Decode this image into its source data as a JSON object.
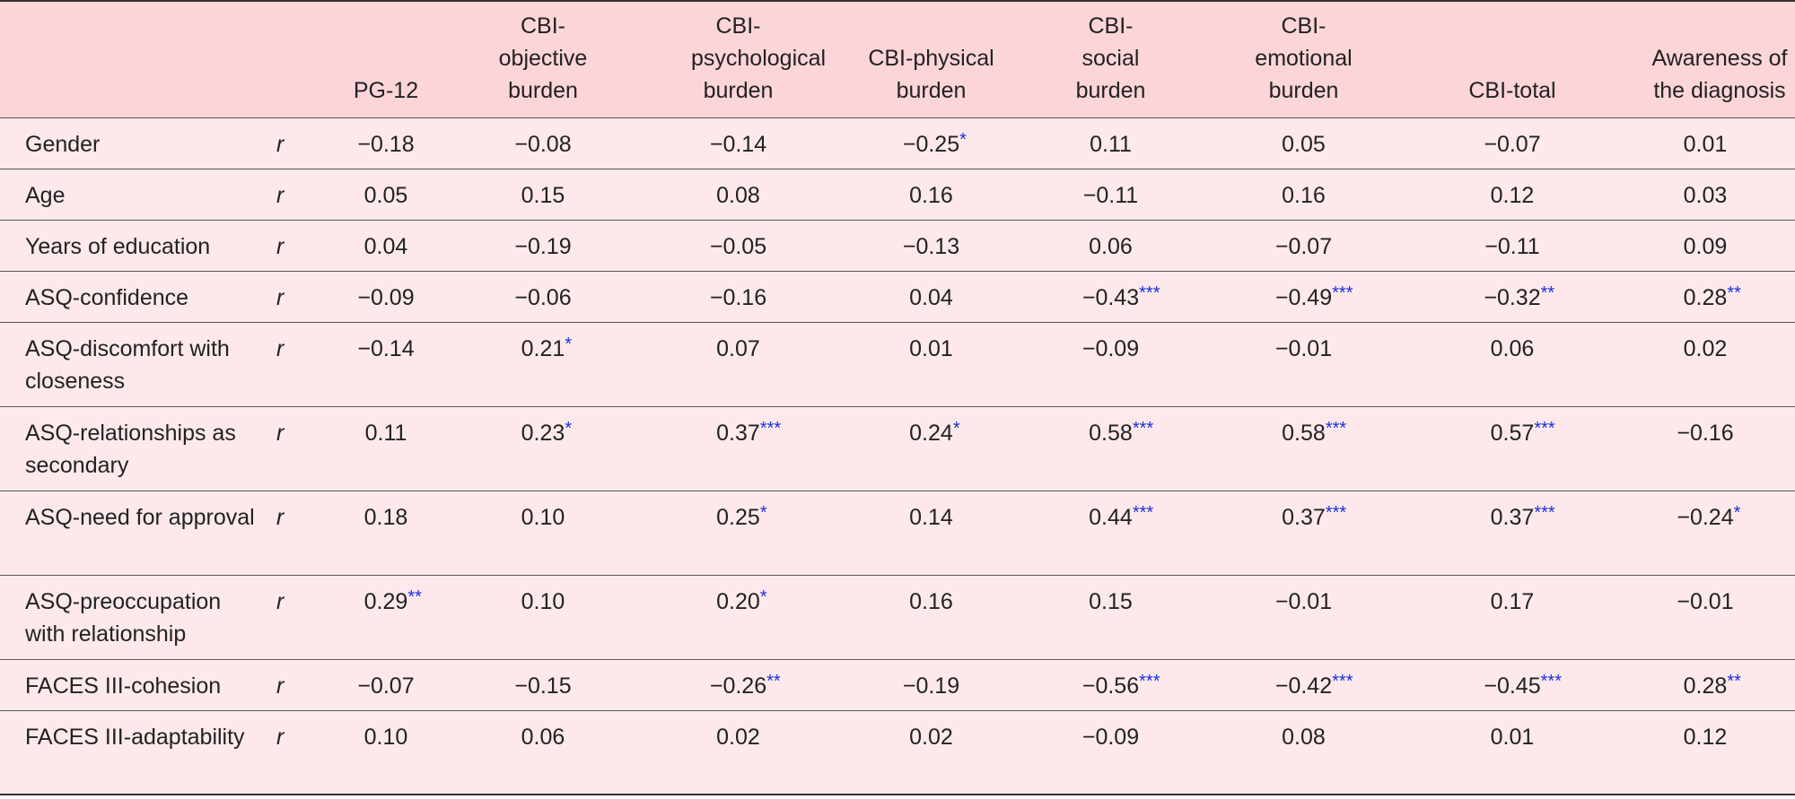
{
  "table": {
    "columns": [
      "",
      "",
      "PG-12",
      "CBI-objective burden",
      "CBI-psychological burden",
      "CBI-physical burden",
      "CBI-social burden",
      "CBI-emotional burden",
      "CBI-total",
      "Awareness of the diagnosis"
    ],
    "rows": [
      {
        "label": "Gender",
        "stat": "r",
        "cells": [
          {
            "v": "−0.18",
            "s": ""
          },
          {
            "v": "−0.08",
            "s": ""
          },
          {
            "v": "−0.14",
            "s": ""
          },
          {
            "v": "−0.25",
            "s": "*"
          },
          {
            "v": "0.11",
            "s": ""
          },
          {
            "v": "0.05",
            "s": ""
          },
          {
            "v": "−0.07",
            "s": ""
          },
          {
            "v": "0.01",
            "s": ""
          }
        ]
      },
      {
        "label": "Age",
        "stat": "r",
        "cells": [
          {
            "v": "0.05",
            "s": ""
          },
          {
            "v": "0.15",
            "s": ""
          },
          {
            "v": "0.08",
            "s": ""
          },
          {
            "v": "0.16",
            "s": ""
          },
          {
            "v": "−0.11",
            "s": ""
          },
          {
            "v": "0.16",
            "s": ""
          },
          {
            "v": "0.12",
            "s": ""
          },
          {
            "v": "0.03",
            "s": ""
          }
        ]
      },
      {
        "label": "Years of education",
        "stat": "r",
        "cells": [
          {
            "v": "0.04",
            "s": ""
          },
          {
            "v": "−0.19",
            "s": ""
          },
          {
            "v": "−0.05",
            "s": ""
          },
          {
            "v": "−0.13",
            "s": ""
          },
          {
            "v": "0.06",
            "s": ""
          },
          {
            "v": "−0.07",
            "s": ""
          },
          {
            "v": "−0.11",
            "s": ""
          },
          {
            "v": "0.09",
            "s": ""
          }
        ]
      },
      {
        "label": "ASQ-confidence",
        "stat": "r",
        "cells": [
          {
            "v": "−0.09",
            "s": ""
          },
          {
            "v": "−0.06",
            "s": ""
          },
          {
            "v": "−0.16",
            "s": ""
          },
          {
            "v": "0.04",
            "s": ""
          },
          {
            "v": "−0.43",
            "s": "***"
          },
          {
            "v": "−0.49",
            "s": "***"
          },
          {
            "v": "−0.32",
            "s": "**"
          },
          {
            "v": "0.28",
            "s": "**"
          }
        ]
      },
      {
        "label": "ASQ-discomfort with closeness",
        "stat": "r",
        "cells": [
          {
            "v": "−0.14",
            "s": ""
          },
          {
            "v": "0.21",
            "s": "*"
          },
          {
            "v": "0.07",
            "s": ""
          },
          {
            "v": "0.01",
            "s": ""
          },
          {
            "v": "−0.09",
            "s": ""
          },
          {
            "v": "−0.01",
            "s": ""
          },
          {
            "v": "0.06",
            "s": ""
          },
          {
            "v": "0.02",
            "s": ""
          }
        ]
      },
      {
        "label": "ASQ-relationships as secondary",
        "stat": "r",
        "cells": [
          {
            "v": "0.11",
            "s": ""
          },
          {
            "v": "0.23",
            "s": "*"
          },
          {
            "v": "0.37",
            "s": "***"
          },
          {
            "v": "0.24",
            "s": "*"
          },
          {
            "v": "0.58",
            "s": "***"
          },
          {
            "v": "0.58",
            "s": "***"
          },
          {
            "v": "0.57",
            "s": "***"
          },
          {
            "v": "−0.16",
            "s": ""
          }
        ]
      },
      {
        "label": "ASQ-need for approval",
        "stat": "r",
        "cells": [
          {
            "v": "0.18",
            "s": ""
          },
          {
            "v": "0.10",
            "s": ""
          },
          {
            "v": "0.25",
            "s": "*"
          },
          {
            "v": "0.14",
            "s": ""
          },
          {
            "v": "0.44",
            "s": "***"
          },
          {
            "v": "0.37",
            "s": "***"
          },
          {
            "v": "0.37",
            "s": "***"
          },
          {
            "v": "−0.24",
            "s": "*"
          }
        ]
      },
      {
        "label": "ASQ-preoccupation with relationship",
        "stat": "r",
        "cells": [
          {
            "v": "0.29",
            "s": "**"
          },
          {
            "v": "0.10",
            "s": ""
          },
          {
            "v": "0.20",
            "s": "*"
          },
          {
            "v": "0.16",
            "s": ""
          },
          {
            "v": "0.15",
            "s": ""
          },
          {
            "v": "−0.01",
            "s": ""
          },
          {
            "v": "0.17",
            "s": ""
          },
          {
            "v": "−0.01",
            "s": ""
          }
        ]
      },
      {
        "label": "FACES III-cohesion",
        "stat": "r",
        "cells": [
          {
            "v": "−0.07",
            "s": ""
          },
          {
            "v": "−0.15",
            "s": ""
          },
          {
            "v": "−0.26",
            "s": "**"
          },
          {
            "v": "−0.19",
            "s": ""
          },
          {
            "v": "−0.56",
            "s": "***"
          },
          {
            "v": "−0.42",
            "s": "***"
          },
          {
            "v": "−0.45",
            "s": "***"
          },
          {
            "v": "0.28",
            "s": "**"
          }
        ]
      },
      {
        "label": "FACES III-adaptability",
        "stat": "r",
        "cells": [
          {
            "v": "0.10",
            "s": ""
          },
          {
            "v": "0.06",
            "s": ""
          },
          {
            "v": "0.02",
            "s": ""
          },
          {
            "v": "0.02",
            "s": ""
          },
          {
            "v": "−0.09",
            "s": ""
          },
          {
            "v": "0.08",
            "s": ""
          },
          {
            "v": "0.01",
            "s": ""
          },
          {
            "v": "0.12",
            "s": ""
          }
        ]
      }
    ]
  }
}
